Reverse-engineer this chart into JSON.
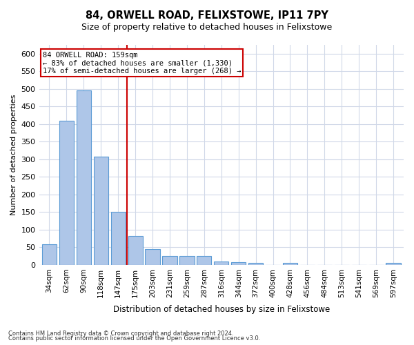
{
  "title1": "84, ORWELL ROAD, FELIXSTOWE, IP11 7PY",
  "title2": "Size of property relative to detached houses in Felixstowe",
  "xlabel": "Distribution of detached houses by size in Felixstowe",
  "ylabel": "Number of detached properties",
  "footnote1": "Contains HM Land Registry data © Crown copyright and database right 2024.",
  "footnote2": "Contains public sector information licensed under the Open Government Licence v3.0.",
  "annotation_line1": "84 ORWELL ROAD: 159sqm",
  "annotation_line2": "← 83% of detached houses are smaller (1,330)",
  "annotation_line3": "17% of semi-detached houses are larger (268) →",
  "property_size": 159,
  "categories": [
    "34sqm",
    "62sqm",
    "90sqm",
    "118sqm",
    "147sqm",
    "175sqm",
    "203sqm",
    "231sqm",
    "259sqm",
    "287sqm",
    "316sqm",
    "344sqm",
    "372sqm",
    "400sqm",
    "428sqm",
    "456sqm",
    "484sqm",
    "513sqm",
    "541sqm",
    "569sqm",
    "597sqm"
  ],
  "values": [
    58,
    410,
    495,
    307,
    150,
    82,
    45,
    25,
    25,
    25,
    10,
    8,
    5,
    0,
    5,
    0,
    0,
    0,
    0,
    0,
    5
  ],
  "bar_color": "#AEC6E8",
  "bar_edge_color": "#5B9BD5",
  "red_line_color": "#CC0000",
  "annotation_box_color": "#CC0000",
  "background_color": "#FFFFFF",
  "grid_color": "#D0D8E8",
  "ylim": [
    0,
    625
  ],
  "yticks": [
    0,
    50,
    100,
    150,
    200,
    250,
    300,
    350,
    400,
    450,
    500,
    550,
    600
  ]
}
